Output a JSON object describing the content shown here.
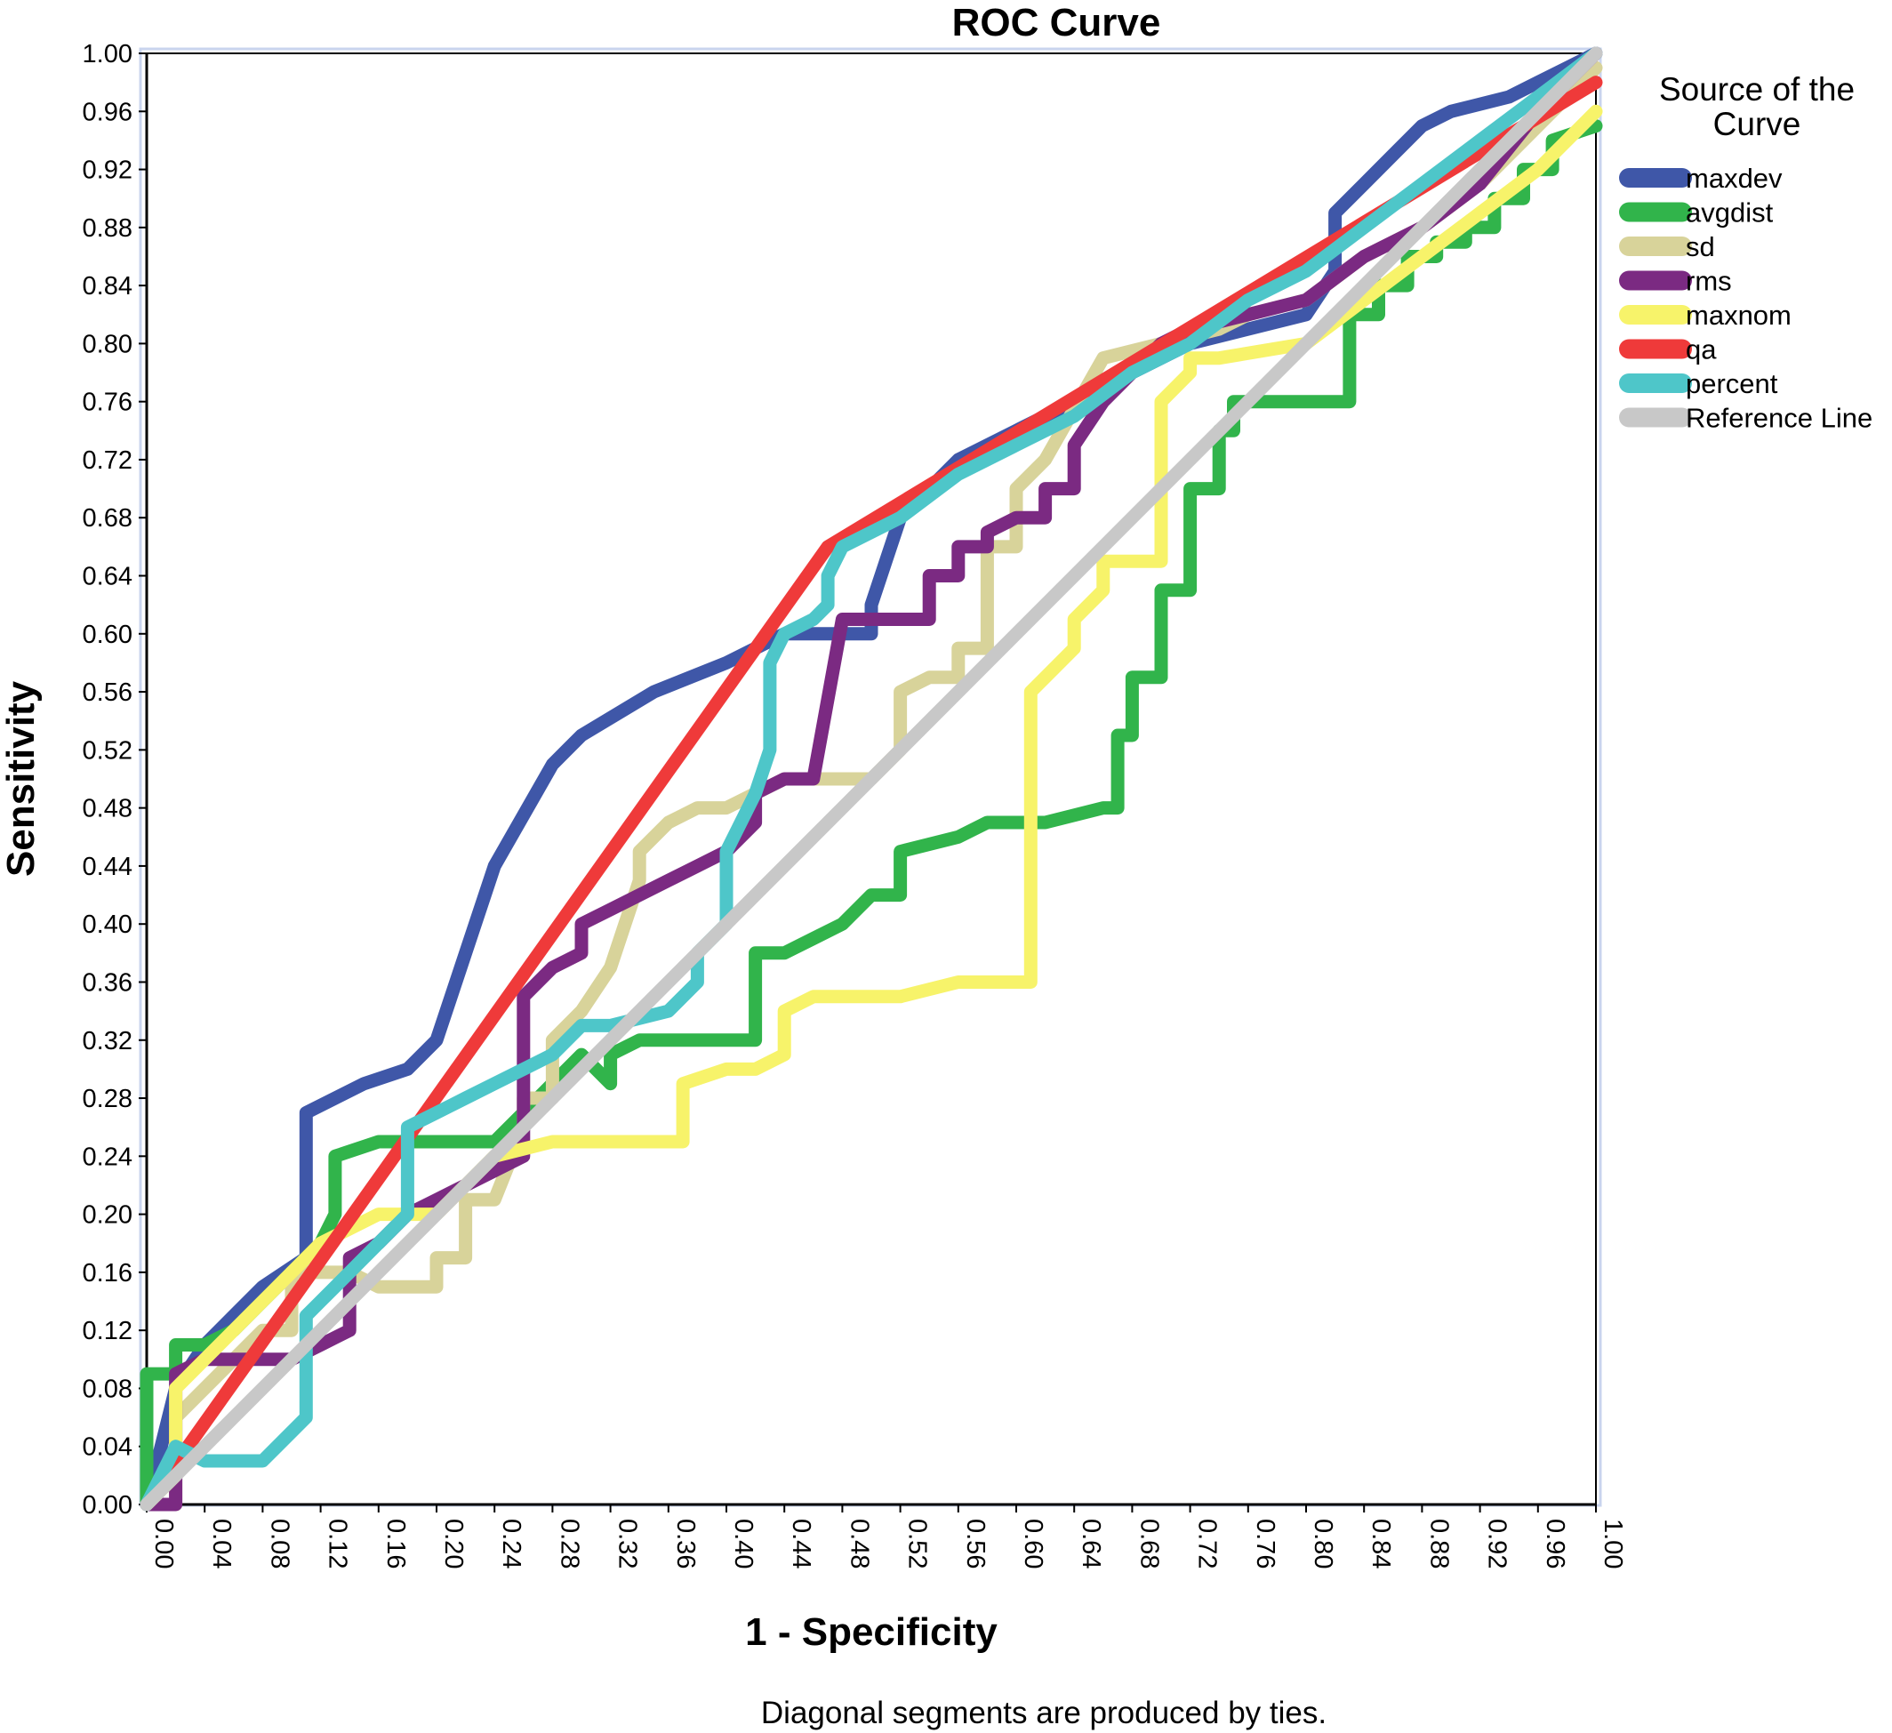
{
  "chart_data": {
    "type": "line",
    "title": "ROC Curve",
    "xlabel": "1 - Specificity",
    "ylabel": "Sensitivity",
    "xlim": [
      0,
      1
    ],
    "ylim": [
      0,
      1
    ],
    "x_ticks": [
      "0.00",
      "0.04",
      "0.08",
      "0.12",
      "0.16",
      "0.20",
      "0.24",
      "0.28",
      "0.32",
      "0.36",
      "0.40",
      "0.44",
      "0.48",
      "0.52",
      "0.56",
      "0.60",
      "0.64",
      "0.68",
      "0.72",
      "0.76",
      "0.80",
      "0.84",
      "0.88",
      "0.92",
      "0.96",
      "1.00"
    ],
    "y_ticks": [
      "0.00",
      "0.04",
      "0.08",
      "0.12",
      "0.16",
      "0.20",
      "0.24",
      "0.28",
      "0.32",
      "0.36",
      "0.40",
      "0.44",
      "0.48",
      "0.52",
      "0.56",
      "0.60",
      "0.64",
      "0.68",
      "0.72",
      "0.76",
      "0.80",
      "0.84",
      "0.88",
      "0.92",
      "0.96",
      "1.00"
    ],
    "grid": false,
    "legend_title": "Source of the Curve",
    "legend_position": "right",
    "footnote": "Diagonal segments are produced by ties.",
    "series": [
      {
        "name": "maxdev",
        "color": "#3f57a8",
        "x": [
          0.0,
          0.02,
          0.04,
          0.06,
          0.08,
          0.11,
          0.11,
          0.15,
          0.18,
          0.2,
          0.24,
          0.28,
          0.3,
          0.35,
          0.4,
          0.44,
          0.46,
          0.5,
          0.5,
          0.52,
          0.56,
          0.6,
          0.64,
          0.68,
          0.72,
          0.8,
          0.82,
          0.82,
          0.84,
          0.86,
          0.88,
          0.9,
          0.94,
          0.96,
          0.98,
          1.0
        ],
        "y": [
          0.0,
          0.08,
          0.11,
          0.13,
          0.15,
          0.17,
          0.27,
          0.29,
          0.3,
          0.32,
          0.44,
          0.51,
          0.53,
          0.56,
          0.58,
          0.6,
          0.6,
          0.6,
          0.62,
          0.68,
          0.72,
          0.74,
          0.76,
          0.78,
          0.8,
          0.82,
          0.85,
          0.89,
          0.91,
          0.93,
          0.95,
          0.96,
          0.97,
          0.98,
          0.99,
          1.0
        ]
      },
      {
        "name": "avgdist",
        "color": "#31b44b",
        "x": [
          0.0,
          0.0,
          0.02,
          0.02,
          0.04,
          0.06,
          0.08,
          0.1,
          0.12,
          0.13,
          0.13,
          0.16,
          0.21,
          0.24,
          0.26,
          0.28,
          0.3,
          0.32,
          0.32,
          0.34,
          0.42,
          0.42,
          0.44,
          0.46,
          0.48,
          0.5,
          0.52,
          0.52,
          0.56,
          0.58,
          0.6,
          0.62,
          0.66,
          0.67,
          0.67,
          0.68,
          0.68,
          0.7,
          0.7,
          0.72,
          0.72,
          0.74,
          0.74,
          0.75,
          0.75,
          0.83,
          0.83,
          0.85,
          0.85,
          0.87,
          0.87,
          0.89,
          0.89,
          0.91,
          0.91,
          0.93,
          0.93,
          0.95,
          0.95,
          0.97,
          0.97,
          1.0
        ],
        "y": [
          0.0,
          0.09,
          0.09,
          0.11,
          0.11,
          0.12,
          0.14,
          0.16,
          0.18,
          0.2,
          0.24,
          0.25,
          0.25,
          0.25,
          0.27,
          0.29,
          0.31,
          0.29,
          0.31,
          0.32,
          0.32,
          0.38,
          0.38,
          0.39,
          0.4,
          0.42,
          0.42,
          0.45,
          0.46,
          0.47,
          0.47,
          0.47,
          0.48,
          0.48,
          0.53,
          0.53,
          0.57,
          0.57,
          0.63,
          0.63,
          0.7,
          0.7,
          0.74,
          0.74,
          0.76,
          0.76,
          0.82,
          0.82,
          0.84,
          0.84,
          0.86,
          0.86,
          0.87,
          0.87,
          0.88,
          0.88,
          0.9,
          0.9,
          0.92,
          0.92,
          0.94,
          0.95
        ]
      },
      {
        "name": "sd",
        "color": "#d8d39a",
        "x": [
          0.0,
          0.02,
          0.02,
          0.04,
          0.06,
          0.08,
          0.1,
          0.1,
          0.14,
          0.16,
          0.18,
          0.2,
          0.2,
          0.22,
          0.22,
          0.24,
          0.26,
          0.26,
          0.28,
          0.28,
          0.3,
          0.32,
          0.34,
          0.34,
          0.36,
          0.38,
          0.4,
          0.44,
          0.48,
          0.5,
          0.52,
          0.52,
          0.54,
          0.56,
          0.56,
          0.58,
          0.58,
          0.6,
          0.6,
          0.62,
          0.66,
          0.7,
          0.74,
          0.76,
          0.8,
          0.84,
          0.88,
          0.92,
          0.96,
          1.0
        ],
        "y": [
          0.0,
          0.0,
          0.06,
          0.08,
          0.1,
          0.12,
          0.12,
          0.16,
          0.16,
          0.15,
          0.15,
          0.15,
          0.17,
          0.17,
          0.21,
          0.21,
          0.26,
          0.28,
          0.28,
          0.32,
          0.34,
          0.37,
          0.43,
          0.45,
          0.47,
          0.48,
          0.48,
          0.5,
          0.5,
          0.5,
          0.52,
          0.56,
          0.57,
          0.57,
          0.59,
          0.59,
          0.66,
          0.66,
          0.7,
          0.72,
          0.79,
          0.8,
          0.81,
          0.82,
          0.83,
          0.86,
          0.88,
          0.91,
          0.95,
          0.99
        ]
      },
      {
        "name": "rms",
        "color": "#7b2a82",
        "x": [
          0.0,
          0.02,
          0.02,
          0.04,
          0.06,
          0.08,
          0.1,
          0.12,
          0.14,
          0.14,
          0.16,
          0.18,
          0.2,
          0.22,
          0.26,
          0.26,
          0.28,
          0.3,
          0.3,
          0.32,
          0.34,
          0.36,
          0.38,
          0.4,
          0.42,
          0.42,
          0.44,
          0.46,
          0.48,
          0.54,
          0.54,
          0.56,
          0.56,
          0.58,
          0.58,
          0.6,
          0.62,
          0.62,
          0.64,
          0.64,
          0.66,
          0.68,
          0.7,
          0.72,
          0.76,
          0.8,
          0.84,
          0.88,
          0.92,
          0.96,
          1.0
        ],
        "y": [
          0.0,
          0.0,
          0.09,
          0.1,
          0.1,
          0.1,
          0.1,
          0.11,
          0.12,
          0.17,
          0.18,
          0.2,
          0.21,
          0.22,
          0.24,
          0.35,
          0.37,
          0.38,
          0.4,
          0.41,
          0.42,
          0.43,
          0.44,
          0.45,
          0.47,
          0.49,
          0.5,
          0.5,
          0.61,
          0.61,
          0.64,
          0.64,
          0.66,
          0.66,
          0.67,
          0.68,
          0.68,
          0.7,
          0.7,
          0.73,
          0.76,
          0.78,
          0.8,
          0.81,
          0.82,
          0.83,
          0.86,
          0.88,
          0.91,
          0.96,
          1.0
        ]
      },
      {
        "name": "maxnom",
        "color": "#f7f36a",
        "x": [
          0.0,
          0.02,
          0.02,
          0.04,
          0.06,
          0.08,
          0.1,
          0.12,
          0.14,
          0.16,
          0.2,
          0.22,
          0.24,
          0.28,
          0.36,
          0.37,
          0.37,
          0.4,
          0.42,
          0.44,
          0.44,
          0.46,
          0.52,
          0.56,
          0.6,
          0.61,
          0.61,
          0.64,
          0.64,
          0.66,
          0.66,
          0.7,
          0.7,
          0.72,
          0.72,
          0.74,
          0.8,
          0.84,
          0.88,
          0.92,
          0.96,
          1.0
        ],
        "y": [
          0.0,
          0.02,
          0.08,
          0.1,
          0.12,
          0.14,
          0.16,
          0.18,
          0.19,
          0.2,
          0.2,
          0.22,
          0.24,
          0.25,
          0.25,
          0.25,
          0.29,
          0.3,
          0.3,
          0.31,
          0.34,
          0.35,
          0.35,
          0.36,
          0.36,
          0.36,
          0.56,
          0.59,
          0.61,
          0.63,
          0.65,
          0.65,
          0.76,
          0.78,
          0.79,
          0.79,
          0.8,
          0.83,
          0.86,
          0.89,
          0.92,
          0.96
        ]
      },
      {
        "name": "qa",
        "color": "#ef3a3a",
        "x": [
          0.0,
          0.47,
          1.0
        ],
        "y": [
          0.0,
          0.66,
          0.98
        ]
      },
      {
        "name": "percent",
        "color": "#4ec6c9",
        "x": [
          0.0,
          0.02,
          0.04,
          0.06,
          0.08,
          0.09,
          0.11,
          0.11,
          0.12,
          0.14,
          0.16,
          0.18,
          0.18,
          0.2,
          0.22,
          0.24,
          0.26,
          0.28,
          0.3,
          0.32,
          0.36,
          0.38,
          0.38,
          0.4,
          0.4,
          0.42,
          0.43,
          0.43,
          0.44,
          0.46,
          0.47,
          0.47,
          0.48,
          0.52,
          0.56,
          0.6,
          0.64,
          0.68,
          0.72,
          0.76,
          0.8,
          0.84,
          0.88,
          0.92,
          0.96,
          1.0
        ],
        "y": [
          0.0,
          0.04,
          0.03,
          0.03,
          0.03,
          0.04,
          0.06,
          0.13,
          0.14,
          0.16,
          0.18,
          0.2,
          0.26,
          0.27,
          0.28,
          0.29,
          0.3,
          0.31,
          0.33,
          0.33,
          0.34,
          0.36,
          0.38,
          0.4,
          0.45,
          0.49,
          0.52,
          0.58,
          0.6,
          0.61,
          0.62,
          0.64,
          0.66,
          0.68,
          0.71,
          0.73,
          0.75,
          0.78,
          0.8,
          0.83,
          0.85,
          0.88,
          0.91,
          0.94,
          0.97,
          1.0
        ]
      },
      {
        "name": "Reference Line",
        "color": "#c8c8c8",
        "x": [
          0.0,
          1.0
        ],
        "y": [
          0.0,
          1.0
        ]
      }
    ]
  }
}
